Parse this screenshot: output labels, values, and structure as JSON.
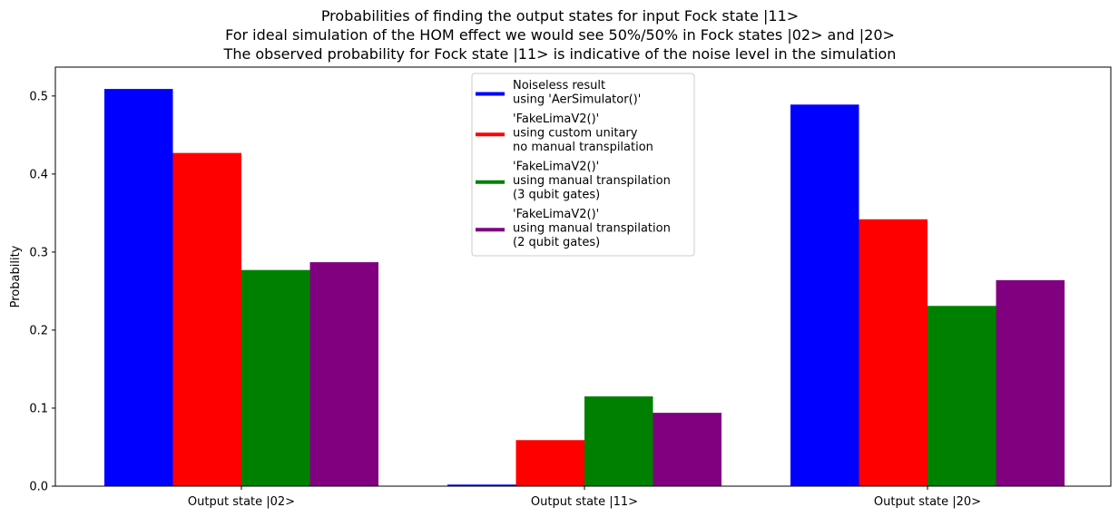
{
  "chart_data": {
    "type": "bar",
    "title": [
      "Probabilities of finding the output states for input Fock state |11>",
      "For ideal simulation of the HOM effect we would see 50%/50% in Fock states |02> and |20>",
      "The observed probability for Fock state |11> is indicative of the noise level in the simulation"
    ],
    "xlabel": "",
    "ylabel": "Probability",
    "categories": [
      "Output state |02>",
      "Output state |11>",
      "Output state |20>"
    ],
    "ylim": [
      0,
      0.537
    ],
    "yticks": [
      "0.0",
      "0.1",
      "0.2",
      "0.3",
      "0.4",
      "0.5"
    ],
    "grid": false,
    "legend_position": "top-center",
    "series": [
      {
        "name": [
          "Noiseless result",
          " using 'AerSimulator()'"
        ],
        "color": "#0000ff",
        "values": [
          0.509,
          0.002,
          0.489
        ]
      },
      {
        "name": [
          "'FakeLimaV2()'",
          " using custom unitary",
          " no manual transpilation"
        ],
        "color": "#ff0000",
        "values": [
          0.427,
          0.059,
          0.342
        ]
      },
      {
        "name": [
          "'FakeLimaV2()'",
          " using manual transpilation",
          " (3 qubit gates)"
        ],
        "color": "#008000",
        "values": [
          0.277,
          0.115,
          0.231
        ]
      },
      {
        "name": [
          "'FakeLimaV2()'",
          " using manual transpilation",
          " (2 qubit gates)"
        ],
        "color": "#800080",
        "values": [
          0.287,
          0.094,
          0.264
        ]
      }
    ]
  }
}
